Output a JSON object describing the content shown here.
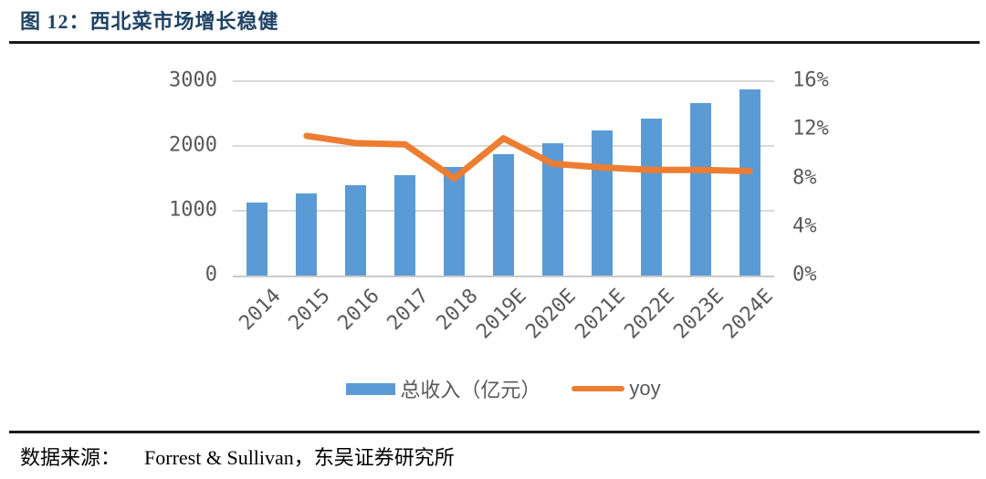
{
  "title": "图 12：西北菜市场增长稳健",
  "source": {
    "prefix": "数据来源：",
    "text": "Forrest & Sullivan，东吴证券研究所"
  },
  "colors": {
    "bar": "#5B9BD5",
    "line": "#ED7D31",
    "title_text": "#1F4264",
    "axis_text": "#595959",
    "gridline": "#D9D9D9",
    "axis_line": "#C9C9C9",
    "divider": "#1A1A1A"
  },
  "chart_data": {
    "type": "bar+line",
    "title": "西北菜市场增长稳健",
    "categories": [
      "2014",
      "2015",
      "2016",
      "2017",
      "2018",
      "2019E",
      "2020E",
      "2021E",
      "2022E",
      "2023E",
      "2024E"
    ],
    "series": [
      {
        "name": "总收入（亿元）",
        "type": "bar",
        "axis": "left",
        "values": [
          1130,
          1270,
          1390,
          1550,
          1680,
          1870,
          2040,
          2240,
          2420,
          2660,
          2870
        ]
      },
      {
        "name": "yoy",
        "type": "line",
        "axis": "right",
        "unit": "%",
        "values": [
          null,
          11.5,
          10.9,
          10.8,
          8.0,
          11.3,
          9.2,
          8.9,
          8.7,
          8.7,
          8.6
        ]
      }
    ],
    "left_axis": {
      "tick_labels": [
        "3000",
        "2000",
        "1000",
        "0"
      ],
      "tick_values": [
        3000,
        2000,
        1000,
        0
      ],
      "min": 0,
      "max": 3000
    },
    "right_axis": {
      "tick_labels": [
        "16%",
        "12%",
        "8%",
        "4%",
        "0%"
      ],
      "tick_values": [
        16,
        12,
        8,
        4,
        0
      ],
      "min": 0,
      "max": 16
    },
    "grid": "horizontal-only",
    "legend_position": "bottom-center"
  }
}
